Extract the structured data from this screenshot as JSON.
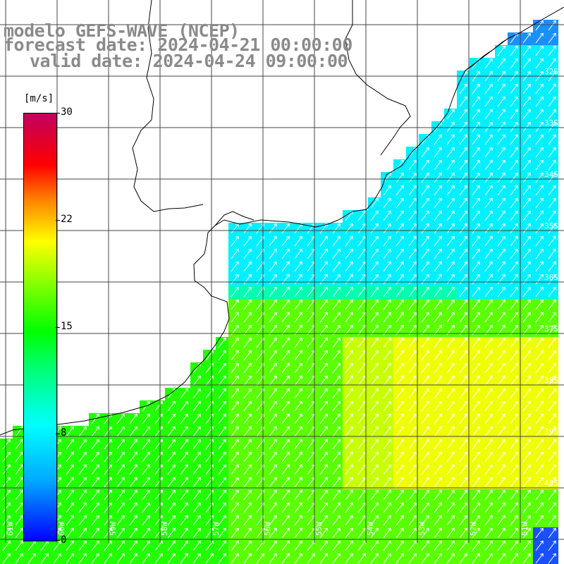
{
  "title": {
    "line1": "modelo GEFS-WAVE (NCEP)",
    "line2": "forecast date: 2024-04-21 00:00:00",
    "line3": "valid date: 2024-04-24 09:00:00"
  },
  "colorbar": {
    "unit": "[m/s]",
    "ticks": [
      "30",
      "22",
      "15",
      "8",
      "0"
    ],
    "colors": [
      "#0000ff",
      "#00a8ff",
      "#00ffff",
      "#00ff60",
      "#00ff00",
      "#a8ff00",
      "#ffff00",
      "#ff8000",
      "#ff0000",
      "#c00060"
    ]
  },
  "map": {
    "lat_labels": [
      "32S",
      "33S",
      "34S",
      "35S",
      "36S",
      "37S",
      "38S",
      "39S",
      "40S"
    ],
    "lon_labels": [
      "61W",
      "60W",
      "59W",
      "58W",
      "57W",
      "56W",
      "55W",
      "54W",
      "53W",
      "52W",
      "51W"
    ],
    "ocean_colors": {
      "cyan": "#00e6ff",
      "green": "#22ff00",
      "yellow": "#f0ff00",
      "blue": "#1a90ff",
      "arrow": "#ffffff",
      "grid": "#555555",
      "coast": "#000000"
    }
  }
}
